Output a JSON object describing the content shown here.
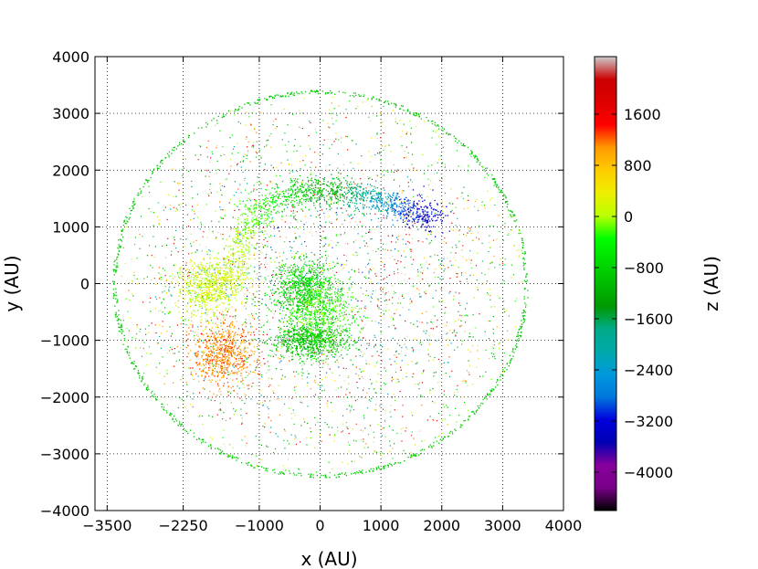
{
  "chart_data": {
    "type": "scatter",
    "title": "",
    "xlabel": "x (AU)",
    "ylabel": "y (AU)",
    "xlim": [
      -3700,
      4000
    ],
    "ylim": [
      -4000,
      4000
    ],
    "x_ticks": [
      -3500,
      -2250,
      -1000,
      0,
      1000,
      2000,
      3000,
      4000
    ],
    "x_tick_labels": [
      "−3500",
      "−2250",
      "−1000",
      "0",
      "1000",
      "2000",
      "3000",
      "4000"
    ],
    "y_ticks": [
      -4000,
      -3000,
      -2000,
      -1000,
      0,
      1000,
      2000,
      3000,
      4000
    ],
    "y_tick_labels": [
      "−4000",
      "−3000",
      "−2000",
      "−1000",
      "0",
      "1000",
      "2000",
      "3000",
      "4000"
    ],
    "grid": true,
    "grid_style": "dotted",
    "colormap": "nipy_spectral",
    "colorbar": {
      "label": "z (AU)",
      "range": [
        -4600,
        2500
      ],
      "ticks": [
        1600,
        800,
        0,
        -800,
        -1600,
        -2400,
        -3200,
        -4000
      ],
      "tick_labels": [
        "1600",
        "800",
        "0",
        "−800",
        "−1600",
        "−2400",
        "−3200",
        "−4000"
      ]
    },
    "background_sphere": {
      "center": [
        0,
        0
      ],
      "radius": 3400,
      "edge_z": -900
    },
    "clumps": [
      {
        "center": [
          -1600,
          -1200
        ],
        "spread": [
          250,
          270
        ],
        "z": 1100
      },
      {
        "center": [
          -1850,
          -50
        ],
        "spread": [
          260,
          250
        ],
        "z": 150
      },
      {
        "center": [
          -300,
          -50
        ],
        "spread": [
          260,
          230
        ],
        "z": -800
      },
      {
        "center": [
          -200,
          -1000
        ],
        "spread": [
          300,
          150
        ],
        "z": -1000
      },
      {
        "center": [
          0,
          -500
        ],
        "spread": [
          300,
          350
        ],
        "z": -300
      }
    ],
    "arc": {
      "points": [
        [
          -1450,
          -100
        ],
        [
          -1350,
          650
        ],
        [
          -1050,
          1250
        ],
        [
          -500,
          1580
        ],
        [
          0,
          1650
        ],
        [
          500,
          1600
        ],
        [
          1000,
          1450
        ],
        [
          1500,
          1300
        ],
        [
          1900,
          1150
        ]
      ],
      "z": [
        100,
        50,
        -200,
        -700,
        -1000,
        -1600,
        -2400,
        -3100,
        -3500
      ],
      "width": 130
    }
  }
}
